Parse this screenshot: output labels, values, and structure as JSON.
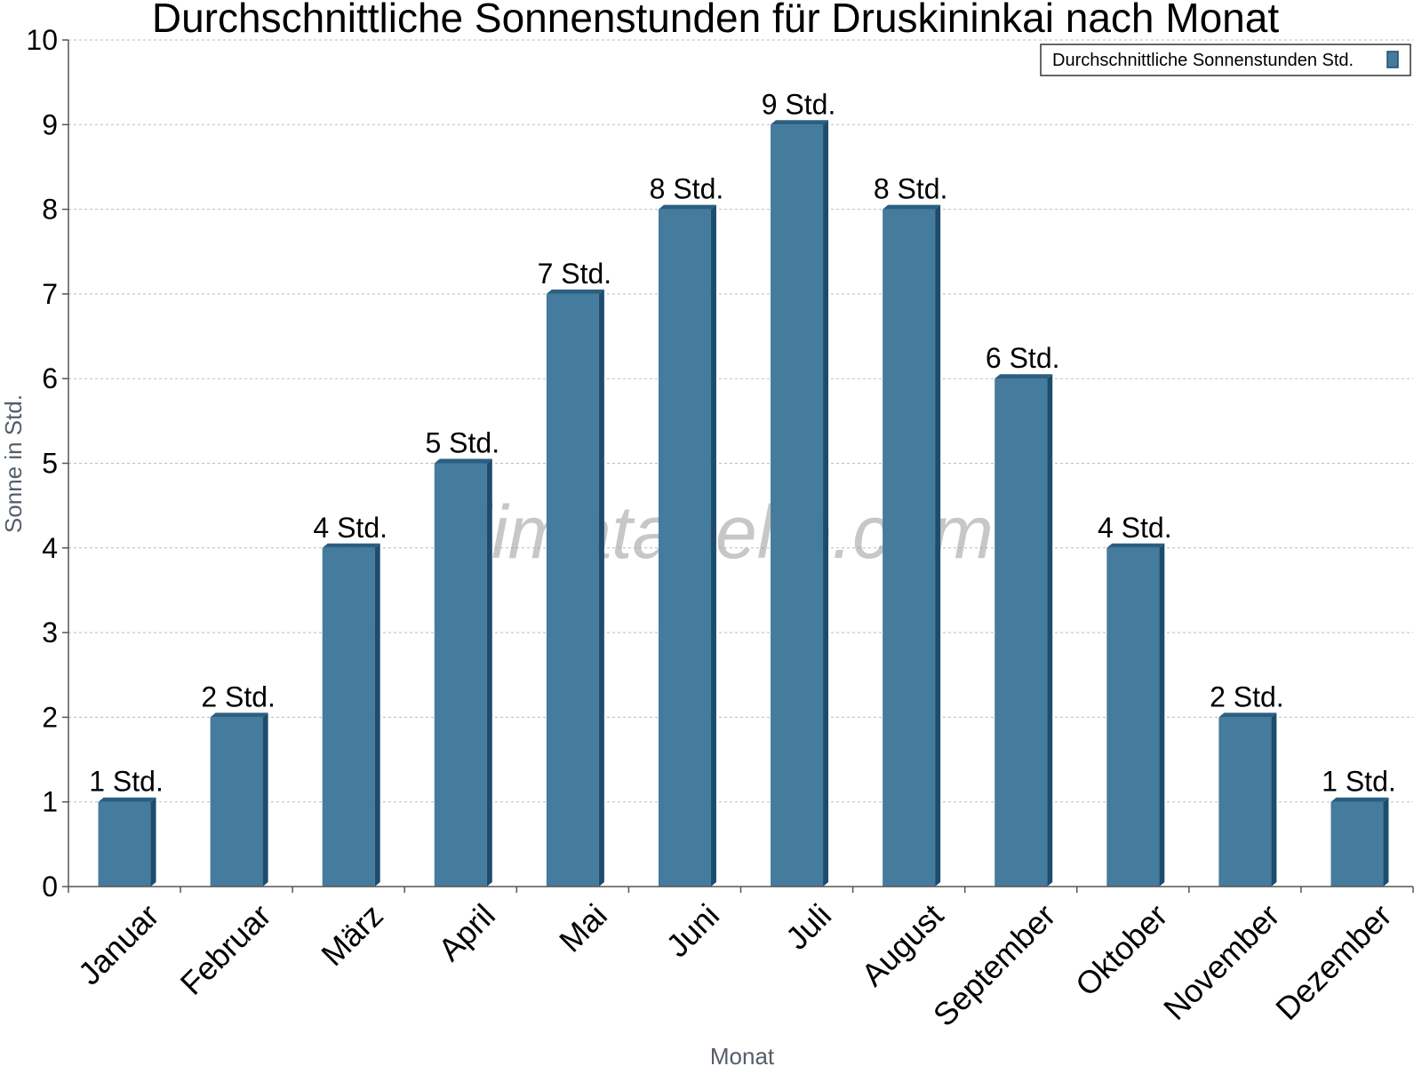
{
  "chart_data": {
    "type": "bar",
    "title": "Durchschnittliche Sonnenstunden für Druskininkai nach Monat",
    "xlabel": "Monat",
    "ylabel": "Sonne in Std.",
    "ylim": [
      0,
      10
    ],
    "yticks": [
      0,
      1,
      2,
      3,
      4,
      5,
      6,
      7,
      8,
      9,
      10
    ],
    "grid": true,
    "legend_position": "top-right",
    "categories": [
      "Januar",
      "Februar",
      "März",
      "April",
      "Mai",
      "Juni",
      "Juli",
      "August",
      "September",
      "Oktober",
      "November",
      "Dezember"
    ],
    "series": [
      {
        "name": "Durchschnittliche Sonnenstunden Std.",
        "values": [
          1,
          2,
          4,
          5,
          7,
          8,
          9,
          8,
          6,
          4,
          2,
          1
        ],
        "value_labels": [
          "1 Std.",
          "2 Std.",
          "4 Std.",
          "5 Std.",
          "7 Std.",
          "8 Std.",
          "9 Std.",
          "8 Std.",
          "6 Std.",
          "4 Std.",
          "2 Std.",
          "1 Std."
        ]
      }
    ],
    "watermark": "klimatabelle.com",
    "colors": {
      "bar": "#457b9d",
      "bar_side": "#1d4d6e",
      "bar_top": "#2b5f82",
      "grid": "#bbbbbb",
      "axis": "#555555"
    }
  }
}
